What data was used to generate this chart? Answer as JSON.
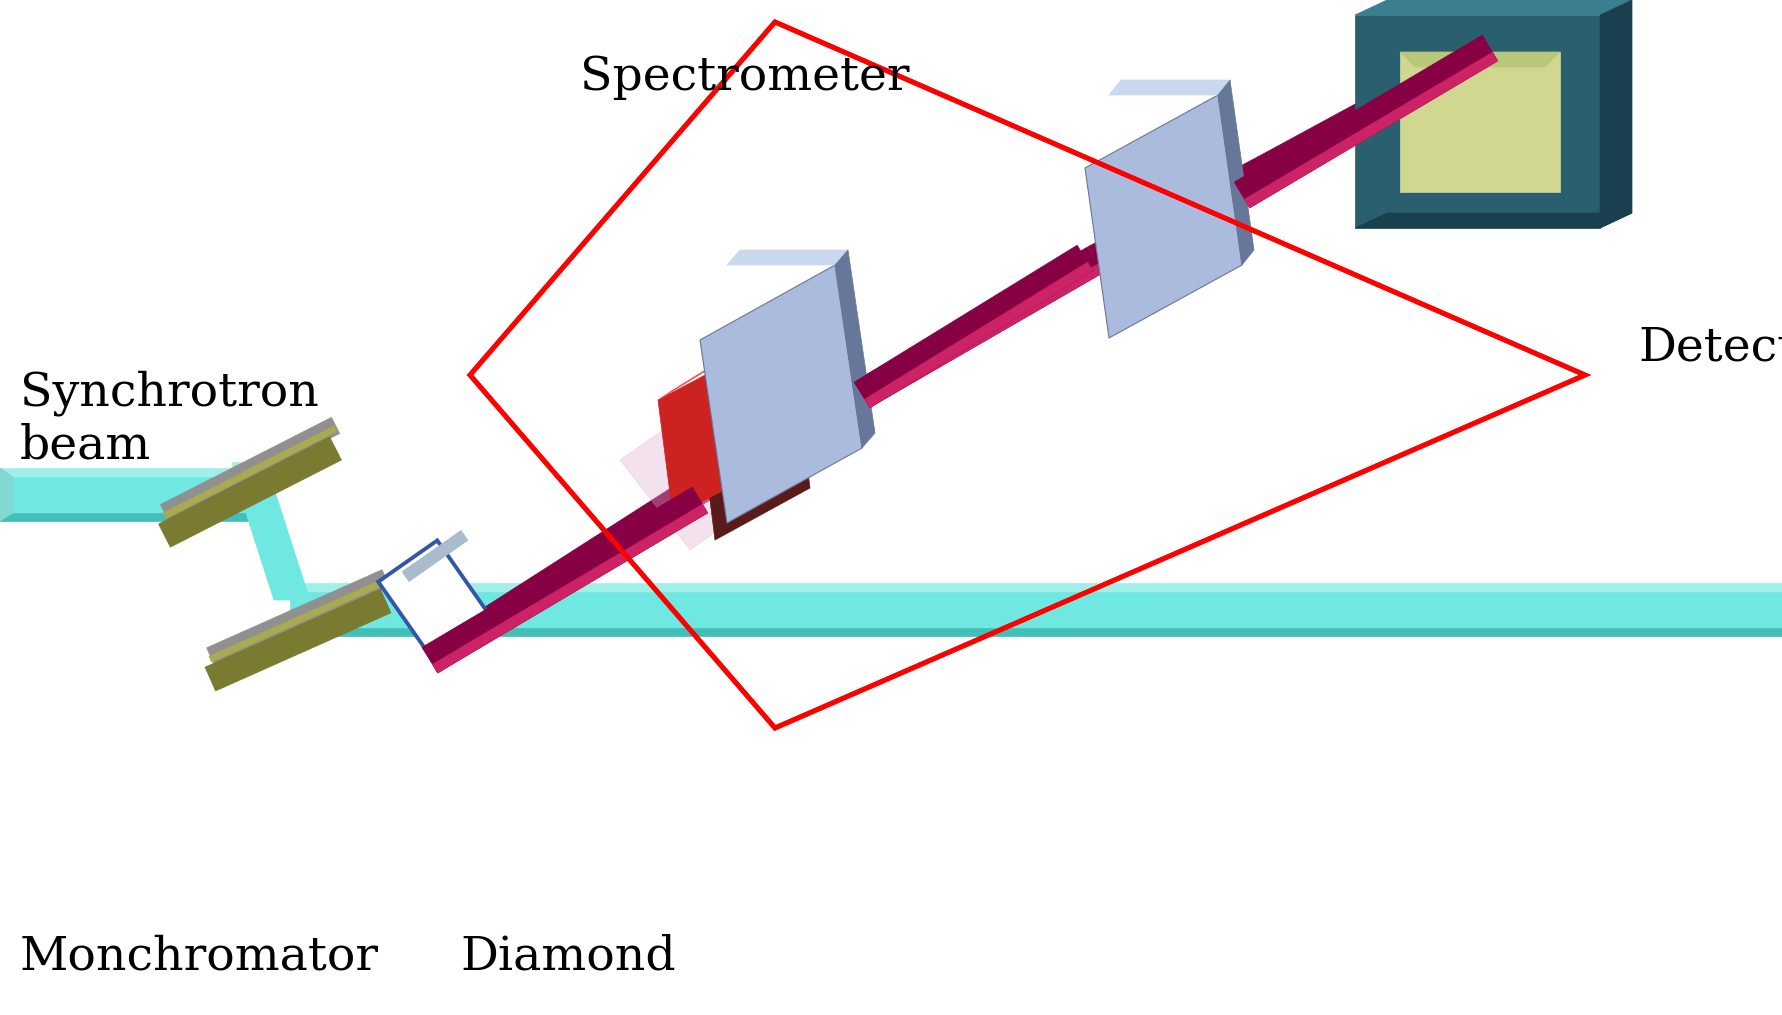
{
  "title": "",
  "bg": "#ffffff",
  "labels": {
    "synchrotron": "Synchrotron\nbeam",
    "monochromator": "Monchromator",
    "diamond": "Diamond",
    "spectrometer": "Spectrometer",
    "detector": "Detector"
  },
  "colors": {
    "bg": "#ffffff",
    "beam_cyan_mid": "#6ee8e0",
    "beam_cyan_light": "#a0f0ea",
    "beam_cyan_dark": "#40c0b8",
    "mono_gray": "#909090",
    "mono_olive": "#7a7a30",
    "mono_olive_light": "#aaaa50",
    "beam_magenta": "#880044",
    "beam_magenta_light": "#cc2266",
    "diamond_outline": "#3355aa",
    "diamond_face": "#ffffff",
    "diamond_gray": "#aabbcc",
    "crystal_red": "#cc2222",
    "crystal_red_light": "#ff4444",
    "crystal_dark_red": "#881111",
    "crystal_darkbrown": "#5a1a1a",
    "crystal_pink": "#ddaacc",
    "slit_blue": "#aabbdd",
    "slit_blue_light": "#c8d8ee",
    "slit_dark": "#667799",
    "det_teal": "#2a5f70",
    "det_teal_light": "#3a7f90",
    "det_dark": "#1a4050",
    "det_face": "#d0d890",
    "red_box": "#ff0000",
    "text": "#000000"
  },
  "figsize": [
    17.82,
    10.15
  ],
  "dpi": 100
}
